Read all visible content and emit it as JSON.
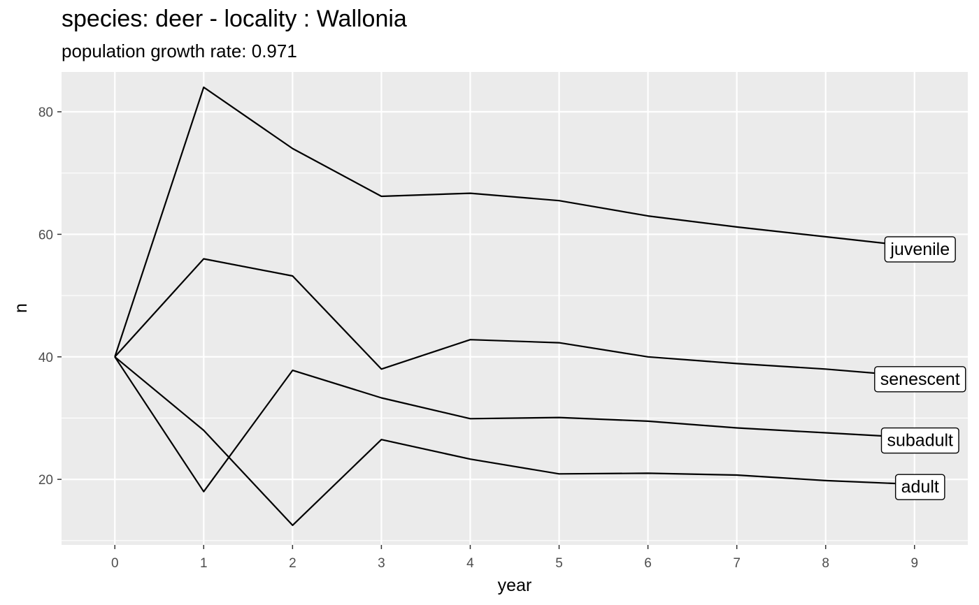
{
  "chart_data": {
    "type": "line",
    "title": "species: deer - locality : Wallonia",
    "subtitle": "population growth rate: 0.971",
    "xlabel": "year",
    "ylabel": "n",
    "x": [
      0,
      1,
      2,
      3,
      4,
      5,
      6,
      7,
      8,
      9
    ],
    "xticks": [
      "0",
      "1",
      "2",
      "3",
      "4",
      "5",
      "6",
      "7",
      "8",
      "9"
    ],
    "yticks": [
      20,
      40,
      60,
      80
    ],
    "xlim": [
      -0.6,
      9.6
    ],
    "ylim": [
      9.3,
      86.5
    ],
    "grid": true,
    "series": [
      {
        "name": "juvenile",
        "values": [
          40,
          84.0,
          74.0,
          66.2,
          66.7,
          65.5,
          63.0,
          61.2,
          59.6,
          58.0
        ]
      },
      {
        "name": "senescent",
        "values": [
          40,
          56.0,
          53.2,
          38.0,
          42.8,
          42.3,
          40.0,
          38.9,
          38.0,
          36.8
        ]
      },
      {
        "name": "subadult",
        "values": [
          40,
          18.0,
          37.8,
          33.3,
          29.9,
          30.1,
          29.5,
          28.4,
          27.6,
          26.8
        ]
      },
      {
        "name": "adult",
        "values": [
          40,
          28.0,
          12.5,
          26.5,
          23.3,
          20.9,
          21.0,
          20.7,
          19.8,
          19.2
        ]
      }
    ]
  }
}
